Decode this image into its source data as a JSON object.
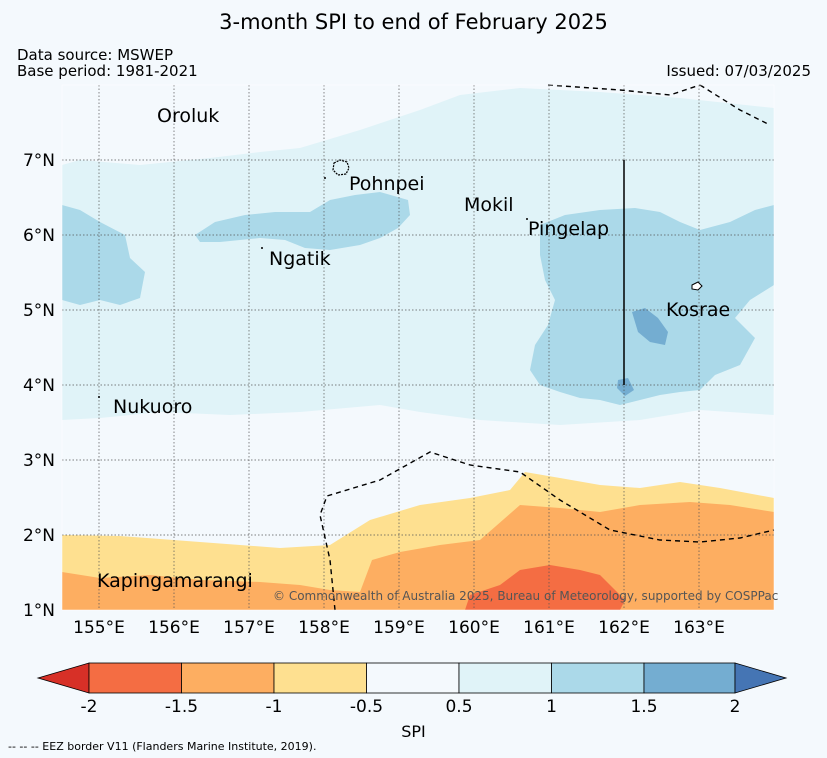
{
  "title": "3-month SPI to end of February 2025",
  "data_source": "Data source: MSWEP",
  "base_period": "Base period: 1981-2021",
  "issued": "Issued: 07/03/2025",
  "copyright": "© Commonwealth of Australia 2025, Bureau of Meteorology, supported by COSPPac",
  "footnote": "--  --  -- EEZ border V11 (Flanders Marine Institute, 2019).",
  "map": {
    "lon_ticks": [
      "155°E",
      "156°E",
      "157°E",
      "158°E",
      "159°E",
      "160°E",
      "161°E",
      "162°E",
      "163°E"
    ],
    "lat_ticks": [
      "1°N",
      "2°N",
      "3°N",
      "4°N",
      "5°N",
      "6°N",
      "7°N"
    ],
    "lon_range": [
      154.5,
      164.0
    ],
    "lat_range": [
      1.0,
      8.0
    ],
    "places": [
      {
        "name": "Oroluk"
      },
      {
        "name": "Pohnpei"
      },
      {
        "name": "Mokil"
      },
      {
        "name": "Pingelap"
      },
      {
        "name": "Ngatik"
      },
      {
        "name": "Kosrae"
      },
      {
        "name": "Nukuoro"
      },
      {
        "name": "Kapingamarangi"
      }
    ]
  },
  "colorbar": {
    "label": "SPI",
    "ticks": [
      "-2",
      "-1.5",
      "-1",
      "-0.5",
      "0.5",
      "1",
      "1.5",
      "2"
    ],
    "colors": [
      "#d73027",
      "#f46d43",
      "#fdae61",
      "#fee090",
      "#f4f9fd",
      "#e0f3f8",
      "#abd9e9",
      "#74add1",
      "#4575b4"
    ]
  }
}
